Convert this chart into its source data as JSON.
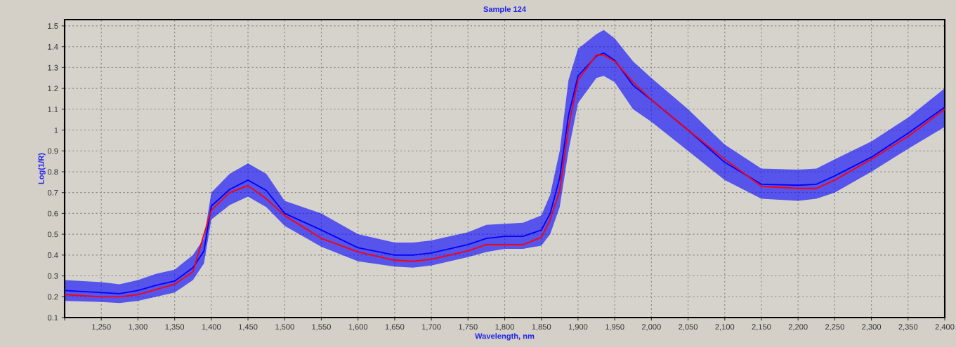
{
  "chart_data": {
    "type": "line",
    "title": "Sample 124",
    "xlabel": "Wavelength, nm",
    "ylabel": "Log(1/R)",
    "x": [
      1200,
      1250,
      1275,
      1300,
      1325,
      1350,
      1375,
      1390,
      1400,
      1425,
      1450,
      1475,
      1500,
      1550,
      1600,
      1650,
      1675,
      1700,
      1750,
      1775,
      1800,
      1825,
      1850,
      1862,
      1875,
      1887,
      1900,
      1925,
      1935,
      1950,
      1975,
      2000,
      2050,
      2100,
      2150,
      2200,
      2225,
      2250,
      2300,
      2350,
      2400
    ],
    "series": [
      {
        "color": "#0000ff",
        "values": [
          0.23,
          0.22,
          0.215,
          0.23,
          0.255,
          0.275,
          0.34,
          0.42,
          0.635,
          0.715,
          0.76,
          0.71,
          0.6,
          0.52,
          0.435,
          0.4,
          0.4,
          0.41,
          0.45,
          0.48,
          0.49,
          0.49,
          0.52,
          0.6,
          0.77,
          1.07,
          1.26,
          1.355,
          1.37,
          1.335,
          1.215,
          1.145,
          1.0,
          0.845,
          0.74,
          0.735,
          0.74,
          0.78,
          0.87,
          0.985,
          1.11
        ],
        "lower": [
          0.18,
          0.175,
          0.17,
          0.18,
          0.2,
          0.22,
          0.28,
          0.36,
          0.57,
          0.64,
          0.68,
          0.63,
          0.54,
          0.44,
          0.37,
          0.345,
          0.34,
          0.35,
          0.39,
          0.415,
          0.43,
          0.43,
          0.445,
          0.5,
          0.63,
          0.9,
          1.13,
          1.25,
          1.26,
          1.23,
          1.1,
          1.04,
          0.9,
          0.76,
          0.67,
          0.66,
          0.67,
          0.7,
          0.8,
          0.91,
          1.015
        ],
        "upper": [
          0.28,
          0.27,
          0.26,
          0.28,
          0.31,
          0.33,
          0.4,
          0.48,
          0.7,
          0.79,
          0.84,
          0.79,
          0.66,
          0.6,
          0.5,
          0.46,
          0.46,
          0.47,
          0.51,
          0.545,
          0.55,
          0.555,
          0.59,
          0.69,
          0.9,
          1.24,
          1.39,
          1.46,
          1.48,
          1.44,
          1.33,
          1.25,
          1.1,
          0.93,
          0.815,
          0.81,
          0.815,
          0.86,
          0.945,
          1.06,
          1.2
        ]
      },
      {
        "color": "#ff0000",
        "values": [
          0.21,
          0.2,
          0.2,
          0.21,
          0.235,
          0.26,
          0.32,
          0.5,
          0.615,
          0.7,
          0.733,
          0.67,
          0.59,
          0.48,
          0.415,
          0.375,
          0.37,
          0.38,
          0.42,
          0.45,
          0.45,
          0.45,
          0.485,
          0.57,
          0.71,
          1.015,
          1.24,
          1.36,
          1.36,
          1.33,
          1.23,
          1.145,
          1.0,
          0.86,
          0.73,
          0.72,
          0.72,
          0.76,
          0.86,
          0.97,
          1.1
        ]
      }
    ],
    "xlim": [
      1200,
      2400
    ],
    "xticks": [
      {
        "value": 1200,
        "label": null
      },
      {
        "value": 1250,
        "label": "1,250"
      },
      {
        "value": 1300,
        "label": "1,300"
      },
      {
        "value": 1350,
        "label": "1,350"
      },
      {
        "value": 1400,
        "label": "1,400"
      },
      {
        "value": 1450,
        "label": "1,450"
      },
      {
        "value": 1500,
        "label": "1,500"
      },
      {
        "value": 1550,
        "label": "1,550"
      },
      {
        "value": 1600,
        "label": "1,600"
      },
      {
        "value": 1650,
        "label": "1,650"
      },
      {
        "value": 1700,
        "label": "1,700"
      },
      {
        "value": 1750,
        "label": "1,750"
      },
      {
        "value": 1800,
        "label": "1,800"
      },
      {
        "value": 1850,
        "label": "1,850"
      },
      {
        "value": 1900,
        "label": "1,900"
      },
      {
        "value": 1950,
        "label": "1,950"
      },
      {
        "value": 2000,
        "label": "2,000"
      },
      {
        "value": 2050,
        "label": "2,050"
      },
      {
        "value": 2100,
        "label": "2,100"
      },
      {
        "value": 2150,
        "label": "2,150"
      },
      {
        "value": 2200,
        "label": "2,200"
      },
      {
        "value": 2250,
        "label": "2,250"
      },
      {
        "value": 2300,
        "label": "2,300"
      },
      {
        "value": 2350,
        "label": "2,350"
      },
      {
        "value": 2400,
        "label": "2,400"
      }
    ],
    "ylim": [
      0.1,
      1.53
    ],
    "yticks": [
      0.1,
      0.2,
      0.3,
      0.4,
      0.5,
      0.6,
      0.7,
      0.8,
      0.9,
      1,
      1.1,
      1.2,
      1.3,
      1.4,
      1.5
    ],
    "grid": true,
    "marker": "none",
    "line_style": "solid"
  }
}
